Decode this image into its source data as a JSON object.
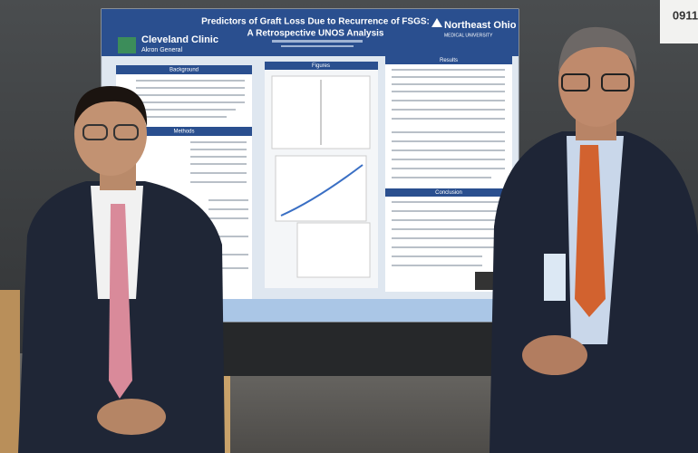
{
  "sign": {
    "number": "0911"
  },
  "poster": {
    "title_lines": [
      "Predictors of Graft Loss Due to Recurrence of FSGS:",
      "A Retrospective UNOS Analysis"
    ],
    "logos": {
      "left": {
        "name": "Cleveland Clinic",
        "sub": "Akron General"
      },
      "right": {
        "name": "Northeast Ohio",
        "sub": "MEDICAL UNIVERSITY"
      }
    },
    "sections": [
      "Background",
      "Methods",
      "Figures",
      "Results",
      "Conclusion"
    ]
  }
}
